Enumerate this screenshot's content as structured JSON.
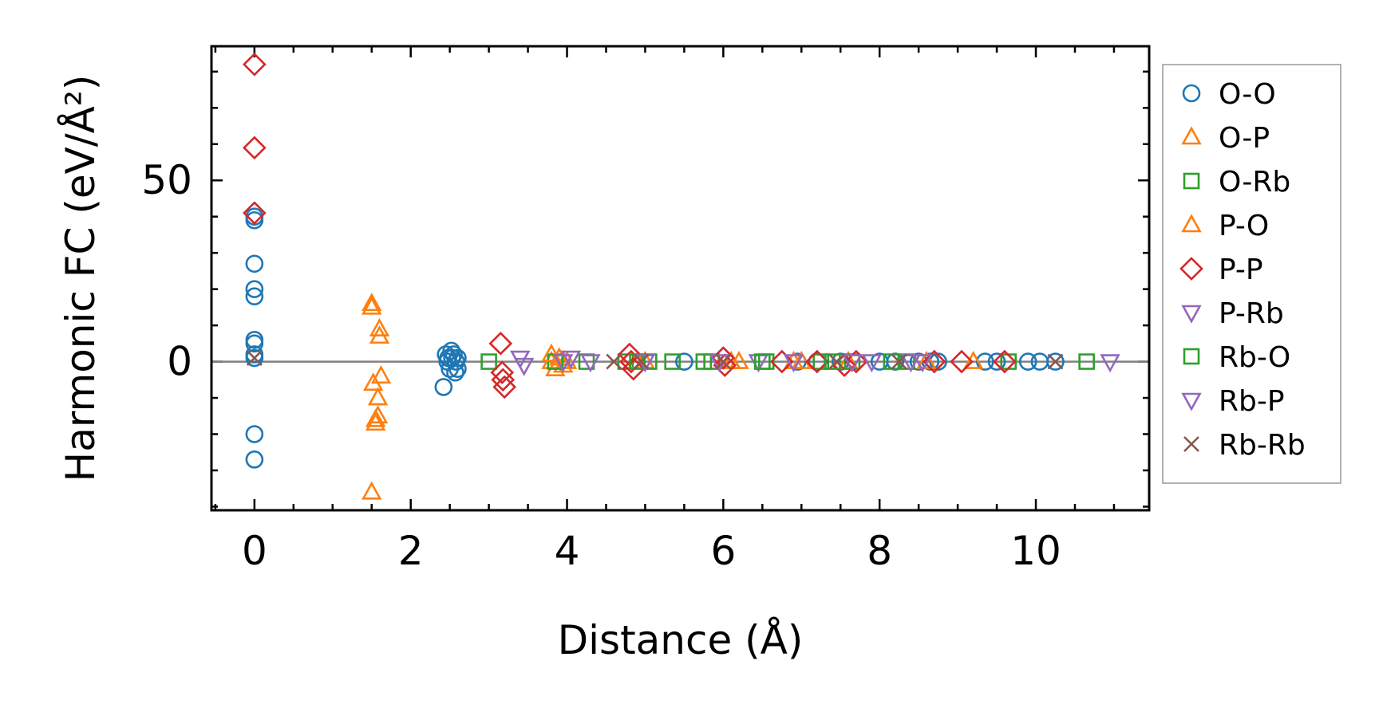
{
  "chart_data": {
    "type": "scatter",
    "title": "",
    "xlabel": "Distance (Å)",
    "ylabel": "Harmonic FC (eV/Å²)",
    "xlim": [
      -0.55,
      11.45
    ],
    "ylim": [
      -41,
      87
    ],
    "xticks": [
      0,
      2,
      4,
      6,
      8,
      10
    ],
    "yticks": [
      0,
      50
    ],
    "x_tick_labels": [
      "0",
      "2",
      "4",
      "6",
      "8",
      "10"
    ],
    "y_tick_labels": [
      "0",
      "50"
    ],
    "zero_line": true,
    "grid": false,
    "legend_position": "outside-right",
    "series": [
      {
        "name": "O-O",
        "marker": "circle",
        "color": "#1f77b4",
        "x": [
          0,
          0,
          0,
          0,
          0,
          0,
          0,
          0,
          0,
          0,
          0,
          2.42,
          2.45,
          2.47,
          2.48,
          2.5,
          2.52,
          2.53,
          2.55,
          2.57,
          2.58,
          2.6,
          2.6,
          5.5,
          6.95,
          7.2,
          7.5,
          8.0,
          8.2,
          8.5,
          8.65,
          8.75,
          9.35,
          9.5,
          9.9,
          10.05,
          10.25
        ],
        "y": [
          40,
          39,
          27,
          20,
          18,
          6,
          5,
          -20,
          -27,
          2,
          1,
          -7,
          2,
          0,
          1,
          -2,
          3,
          1,
          2,
          -3,
          0,
          -2,
          1,
          0,
          0,
          0,
          0,
          0,
          0,
          0,
          0,
          0,
          0,
          0,
          0,
          0,
          0
        ]
      },
      {
        "name": "O-P",
        "marker": "triangle-up",
        "color": "#ff7f0e",
        "x": [
          1.5,
          1.5,
          1.52,
          1.55,
          1.58,
          1.58,
          1.6,
          1.6,
          1.62,
          3.8,
          3.85,
          3.9,
          3.95,
          4.0,
          5.0,
          6.2,
          7.0,
          7.6,
          8.6,
          9.2
        ],
        "y": [
          16,
          15,
          -6,
          -16,
          -15,
          -10,
          9,
          7,
          -4,
          0,
          -2,
          1,
          -1,
          0,
          0,
          0,
          0,
          0,
          0,
          0
        ]
      },
      {
        "name": "O-Rb",
        "marker": "square",
        "color": "#2ca02c",
        "x": [
          3.0,
          3.85,
          4.25,
          4.75,
          5.05,
          5.35,
          5.85,
          6.55,
          7.25,
          7.65,
          8.35,
          9.65,
          10.65
        ],
        "y": [
          0,
          0,
          0,
          0,
          0,
          0,
          0,
          0,
          0,
          0,
          0,
          0,
          0
        ]
      },
      {
        "name": "P-O",
        "marker": "triangle-up",
        "color": "#ff7f0e",
        "x": [
          1.5,
          1.55,
          3.8,
          4.9,
          6.1,
          6.9
        ],
        "y": [
          -36,
          -17,
          2,
          0,
          0,
          0
        ]
      },
      {
        "name": "P-P",
        "marker": "diamond",
        "color": "#d62728",
        "x": [
          0,
          0,
          0,
          3.15,
          3.17,
          3.18,
          3.2,
          4.8,
          4.82,
          4.85,
          6.0,
          6.02,
          6.75,
          7.2,
          7.55,
          7.7,
          8.7,
          9.05,
          9.6
        ],
        "y": [
          82,
          59,
          41,
          5,
          -3,
          -5,
          -7,
          2,
          0,
          -2,
          1,
          -1,
          0,
          0,
          -1,
          0,
          0,
          0,
          0
        ]
      },
      {
        "name": "P-Rb",
        "marker": "triangle-down",
        "color": "#9467bd",
        "x": [
          3.4,
          3.45,
          3.95,
          4.3,
          6.45,
          6.9,
          7.9,
          8.4,
          10.95
        ],
        "y": [
          1,
          -1,
          0,
          0,
          0,
          0,
          0,
          0,
          0
        ]
      },
      {
        "name": "Rb-O",
        "marker": "square",
        "color": "#2ca02c",
        "x": [
          4.9,
          5.75,
          6.5,
          7.4,
          8.15
        ],
        "y": [
          0,
          0,
          0,
          0,
          0
        ]
      },
      {
        "name": "Rb-P",
        "marker": "triangle-down",
        "color": "#9467bd",
        "x": [
          4.05,
          5.0,
          5.95,
          7.65,
          8.55
        ],
        "y": [
          1,
          0,
          0,
          0,
          0
        ]
      },
      {
        "name": "Rb-Rb",
        "marker": "x",
        "color": "#8c564b",
        "x": [
          0,
          4.6,
          4.95,
          6.0,
          7.45,
          8.25,
          10.25
        ],
        "y": [
          1,
          0,
          0,
          0,
          0,
          0,
          0
        ]
      }
    ]
  }
}
